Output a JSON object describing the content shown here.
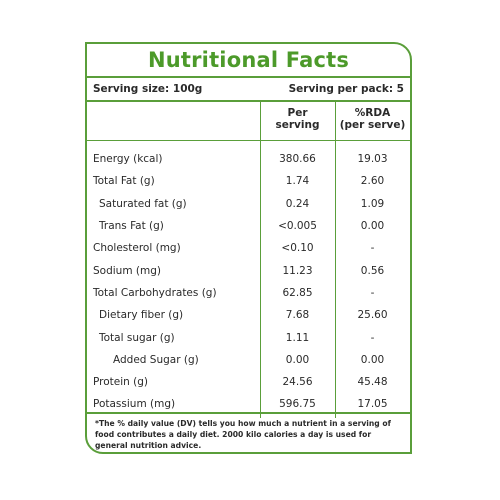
{
  "title": "Nutritional Facts",
  "serving_size": "Serving size: 100g",
  "serving_per_pack": "Serving per pack: 5",
  "headers": {
    "per_serving": [
      "Per",
      "serving"
    ],
    "rda": [
      "%RDA",
      "(per serve)"
    ]
  },
  "rows": [
    {
      "name": "Energy (kcal)",
      "per_serving": "380.66",
      "rda": "19.03"
    },
    {
      "name": "Total Fat (g)",
      "per_serving": "1.74",
      "rda": "2.60"
    },
    {
      "name": "Saturated fat (g)",
      "per_serving": "0.24",
      "rda": "1.09"
    },
    {
      "name": "Trans Fat (g)",
      "per_serving": "<0.005",
      "rda": "0.00"
    },
    {
      "name": "Cholesterol (mg)",
      "per_serving": "<0.10",
      "rda": "-"
    },
    {
      "name": "Sodium (mg)",
      "per_serving": "11.23",
      "rda": "0.56"
    },
    {
      "name": "Total Carbohydrates (g)",
      "per_serving": "62.85",
      "rda": "-"
    },
    {
      "name": "Dietary fiber (g)",
      "per_serving": "7.68",
      "rda": "25.60"
    },
    {
      "name": "Total sugar (g)",
      "per_serving": "1.11",
      "rda": "-"
    },
    {
      "name": "Added Sugar (g)",
      "per_serving": "0.00",
      "rda": "0.00"
    },
    {
      "name": "Protein (g)",
      "per_serving": "24.56",
      "rda": "45.48"
    },
    {
      "name": "Potassium (mg)",
      "per_serving": "596.75",
      "rda": "17.05"
    }
  ],
  "footnote": "*The % daily value (DV) tells you how much a nutrient in a serving of food contributes a daily diet. 2000 kilo calories a day is used for general nutrition advice.",
  "colors": {
    "accent": "#5a9e3a",
    "title": "#4c9a2a"
  }
}
